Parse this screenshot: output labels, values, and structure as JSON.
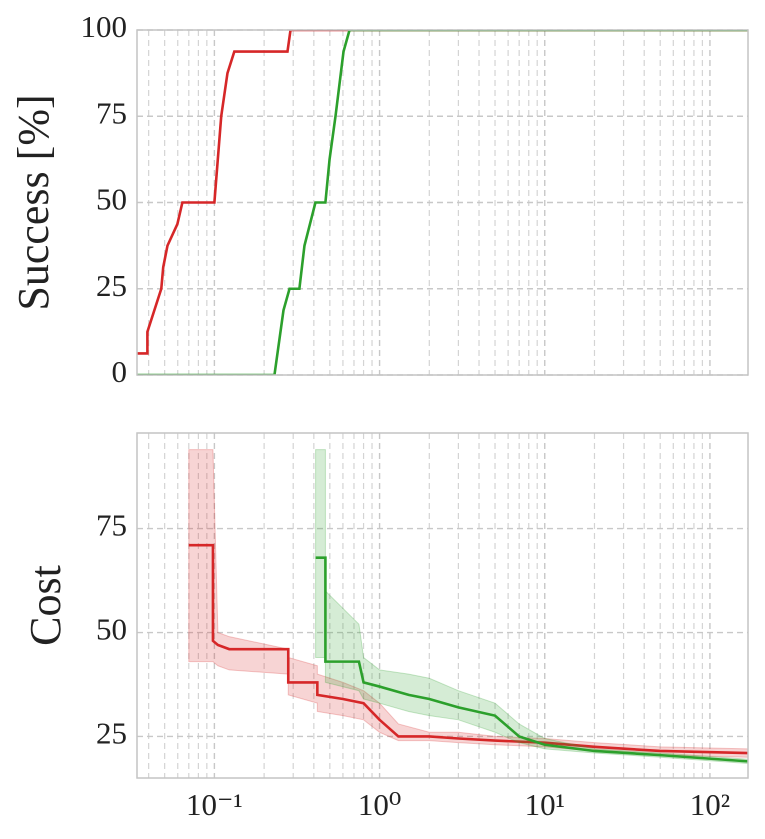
{
  "chart_data": [
    {
      "type": "line",
      "ylabel": "Success [%]",
      "xscale": "log",
      "xlim": [
        0.034,
        170
      ],
      "ylim": [
        0,
        100
      ],
      "xticks": [
        0.1,
        1,
        10,
        100
      ],
      "xminorticks": [
        0.04,
        0.05,
        0.06,
        0.07,
        0.08,
        0.09,
        0.2,
        0.3,
        0.4,
        0.5,
        0.6,
        0.7,
        0.8,
        0.9,
        2,
        3,
        4,
        5,
        6,
        7,
        8,
        9,
        20,
        30,
        40,
        50,
        60,
        70,
        80,
        90
      ],
      "yticks": [
        0,
        25,
        50,
        75,
        100
      ],
      "grid": true,
      "series": [
        {
          "color": "#d62728",
          "x": [
            0.034,
            0.0393,
            0.0393,
            0.0477,
            0.049,
            0.052,
            0.0597,
            0.064,
            0.1,
            0.11,
            0.12,
            0.132,
            0.277,
            0.289,
            170
          ],
          "values": [
            6.25,
            6.25,
            12.5,
            25,
            31.25,
            37.5,
            43.75,
            50,
            50,
            75,
            87.5,
            93.75,
            93.75,
            100,
            100
          ]
        },
        {
          "color": "#2ca02c",
          "x": [
            0.034,
            0.231,
            0.262,
            0.285,
            0.327,
            0.351,
            0.409,
            0.47,
            0.498,
            0.541,
            0.605,
            0.658,
            170
          ],
          "values": [
            0,
            0,
            18.75,
            25,
            25,
            37.5,
            50,
            50,
            62.5,
            75,
            93.75,
            100,
            100
          ]
        }
      ]
    },
    {
      "type": "line",
      "ylabel": "Cost",
      "xscale": "log",
      "xlim": [
        0.034,
        170
      ],
      "ylim": [
        15,
        98
      ],
      "xticks": [
        {
          "value": 0.1,
          "label": "10⁻¹"
        },
        {
          "value": 1,
          "label": "10⁰"
        },
        {
          "value": 10,
          "label": "10¹"
        },
        {
          "value": 100,
          "label": "10²"
        }
      ],
      "xminorticks": [
        0.04,
        0.05,
        0.06,
        0.07,
        0.08,
        0.09,
        0.2,
        0.3,
        0.4,
        0.5,
        0.6,
        0.7,
        0.8,
        0.9,
        2,
        3,
        4,
        5,
        6,
        7,
        8,
        9,
        20,
        30,
        40,
        50,
        60,
        70,
        80,
        90
      ],
      "yticks": [
        25,
        50,
        75
      ],
      "grid": true,
      "series": [
        {
          "color": "#d62728",
          "x": [
            0.07,
            0.098,
            0.098,
            0.105,
            0.123,
            0.28,
            0.28,
            0.42,
            0.42,
            0.6,
            0.8,
            1.0,
            1.3,
            2.0,
            3.0,
            5.0,
            10,
            20,
            50,
            170
          ],
          "values": [
            71,
            71,
            48,
            47,
            46,
            46,
            38,
            38,
            35,
            34,
            33,
            29,
            25,
            25,
            24.5,
            24,
            23.5,
            22.5,
            21.5,
            21
          ],
          "upper": [
            94,
            94,
            94,
            50,
            49,
            46,
            44,
            42,
            40,
            38,
            36,
            33,
            28,
            26,
            26,
            25,
            24.5,
            23.5,
            22.5,
            22
          ],
          "lower": [
            43,
            43,
            43,
            42,
            41,
            40,
            35,
            33,
            31,
            30,
            29,
            26,
            24,
            24,
            23.5,
            23,
            22.5,
            21.5,
            20.5,
            20
          ]
        },
        {
          "color": "#2ca02c",
          "x": [
            0.41,
            0.47,
            0.47,
            0.75,
            0.8,
            1.0,
            1.5,
            2.0,
            3.0,
            5.0,
            7.0,
            10,
            20,
            50,
            170
          ],
          "values": [
            68,
            68,
            43,
            43,
            38,
            37,
            35,
            34,
            32,
            30,
            25,
            23,
            21.5,
            20.5,
            19
          ],
          "upper": [
            94,
            94,
            60,
            52,
            44,
            41,
            40,
            39,
            36,
            33,
            28,
            24.5,
            22,
            21,
            19.5
          ],
          "lower": [
            44,
            44,
            38,
            36,
            34,
            33,
            31,
            30,
            29,
            26,
            23.5,
            22,
            21,
            20,
            18.5
          ]
        }
      ]
    }
  ]
}
